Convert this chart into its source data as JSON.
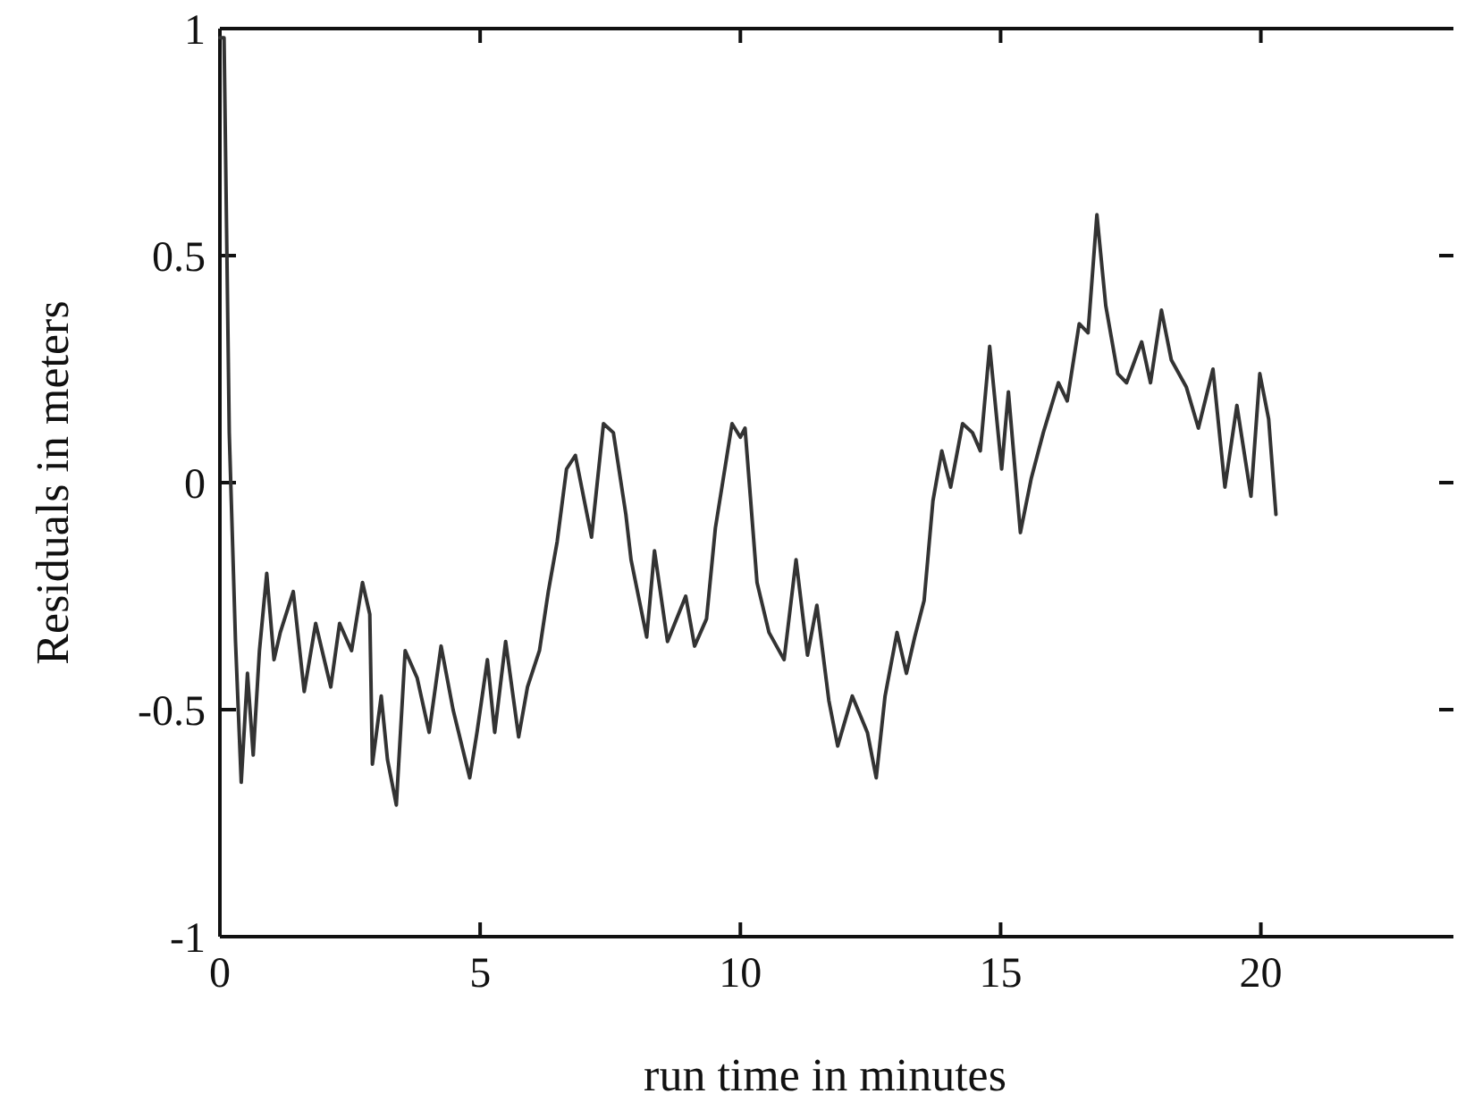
{
  "chart_data": {
    "type": "line",
    "xlabel": "run time in minutes",
    "ylabel": "Residuals in meters",
    "xlim": [
      0,
      23.7
    ],
    "xticks": [
      0,
      5,
      10,
      15,
      20
    ],
    "ylim": [
      -1,
      1
    ],
    "yticks": [
      -1,
      -0.5,
      0,
      0.5,
      1
    ],
    "marker": "none",
    "line_style": "solid",
    "series": [
      {
        "color": "#333333",
        "x": [
          0,
          0.08,
          0.18,
          0.3,
          0.41,
          0.53,
          0.64,
          0.76,
          0.9,
          1.04,
          1.16,
          1.41,
          1.62,
          1.84,
          2.13,
          2.3,
          2.53,
          2.74,
          2.88,
          2.93,
          3.1,
          3.22,
          3.39,
          3.56,
          3.79,
          4.02,
          4.25,
          4.48,
          4.8,
          4.94,
          5.14,
          5.28,
          5.49,
          5.74,
          5.91,
          6.14,
          6.31,
          6.48,
          6.66,
          6.83,
          7.14,
          7.37,
          7.56,
          7.8,
          7.9,
          8.2,
          8.35,
          8.6,
          8.95,
          9.12,
          9.35,
          9.52,
          9.84,
          10.0,
          10.09,
          10.32,
          10.55,
          10.84,
          11.07,
          11.29,
          11.47,
          11.7,
          11.87,
          12.15,
          12.44,
          12.61,
          12.78,
          13.01,
          13.19,
          13.35,
          13.53,
          13.7,
          13.87,
          14.04,
          14.27,
          14.46,
          14.61,
          14.79,
          15.02,
          15.15,
          15.38,
          15.59,
          15.82,
          16.11,
          16.28,
          16.51,
          16.68,
          16.85,
          17.02,
          17.25,
          17.42,
          17.71,
          17.88,
          18.09,
          18.28,
          18.57,
          18.8,
          19.08,
          19.31,
          19.54,
          19.81,
          19.98,
          20.15,
          20.29
        ],
        "values": [
          0.98,
          0.98,
          0.11,
          -0.35,
          -0.66,
          -0.42,
          -0.6,
          -0.37,
          -0.2,
          -0.39,
          -0.33,
          -0.24,
          -0.46,
          -0.31,
          -0.45,
          -0.31,
          -0.37,
          -0.22,
          -0.29,
          -0.62,
          -0.47,
          -0.61,
          -0.71,
          -0.37,
          -0.43,
          -0.55,
          -0.36,
          -0.5,
          -0.65,
          -0.55,
          -0.39,
          -0.55,
          -0.35,
          -0.56,
          -0.45,
          -0.37,
          -0.24,
          -0.13,
          0.03,
          0.06,
          -0.12,
          0.13,
          0.11,
          -0.07,
          -0.17,
          -0.34,
          -0.15,
          -0.35,
          -0.25,
          -0.36,
          -0.3,
          -0.1,
          0.13,
          0.1,
          0.12,
          -0.22,
          -0.33,
          -0.39,
          -0.17,
          -0.38,
          -0.27,
          -0.48,
          -0.58,
          -0.47,
          -0.55,
          -0.65,
          -0.47,
          -0.33,
          -0.42,
          -0.34,
          -0.26,
          -0.04,
          0.07,
          -0.01,
          0.13,
          0.11,
          0.07,
          0.3,
          0.03,
          0.2,
          -0.11,
          0.01,
          0.11,
          0.22,
          0.18,
          0.35,
          0.33,
          0.59,
          0.39,
          0.24,
          0.22,
          0.31,
          0.22,
          0.38,
          0.27,
          0.21,
          0.12,
          0.25,
          -0.01,
          0.17,
          -0.03,
          0.24,
          0.14,
          -0.07
        ]
      }
    ]
  }
}
